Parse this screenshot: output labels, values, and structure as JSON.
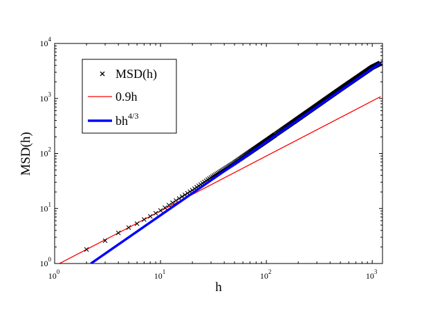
{
  "chart_data": {
    "type": "line",
    "scale": {
      "x": "log",
      "y": "log"
    },
    "xlabel": "h",
    "ylabel": "MSD(h)",
    "xlim": [
      1,
      1250
    ],
    "ylim": [
      1,
      10000
    ],
    "grid": false,
    "legend_position": "top-left",
    "x_ticks": [
      {
        "base": "10",
        "exp": "0",
        "value": 1
      },
      {
        "base": "10",
        "exp": "1",
        "value": 10
      },
      {
        "base": "10",
        "exp": "2",
        "value": 100
      },
      {
        "base": "10",
        "exp": "3",
        "value": 1000
      }
    ],
    "y_ticks": [
      {
        "base": "10",
        "exp": "0",
        "value": 1
      },
      {
        "base": "10",
        "exp": "1",
        "value": 10
      },
      {
        "base": "10",
        "exp": "2",
        "value": 100
      },
      {
        "base": "10",
        "exp": "3",
        "value": 1000
      },
      {
        "base": "10",
        "exp": "4",
        "value": 10000
      }
    ],
    "series": [
      {
        "name": "MSD(h)",
        "marker": "x",
        "color": "#000000",
        "sampling": "h = 2, 3, 4, ... up to 1200 (integer lags)",
        "x": [
          2,
          3,
          4,
          5,
          6,
          7,
          8,
          9,
          10,
          12,
          15,
          20,
          30,
          50,
          100,
          200,
          500,
          1000,
          1200
        ],
        "y": [
          1.8,
          2.6,
          3.6,
          4.5,
          5.3,
          6.3,
          7.2,
          8.2,
          9.2,
          11.5,
          15.2,
          21.5,
          36.5,
          68,
          170,
          430,
          1480,
          3700,
          4400
        ]
      },
      {
        "name": "0.9h",
        "style": "line",
        "color": "#ff0000",
        "x": [
          1.1,
          1200
        ],
        "y": [
          0.99,
          1080
        ]
      },
      {
        "name": "bh^{4/3}",
        "legend_base": "bh",
        "legend_sup": "4/3",
        "style": "line",
        "color": "#0000ff",
        "x": [
          2.2,
          1200
        ],
        "y": [
          1.0,
          4450
        ]
      }
    ]
  }
}
